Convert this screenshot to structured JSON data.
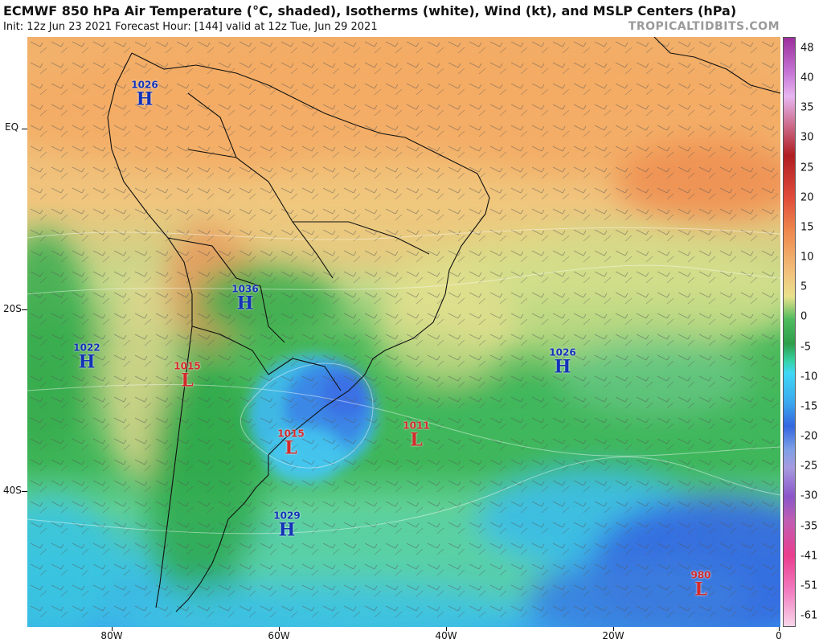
{
  "header": {
    "title": "ECMWF 850 hPa Air Temperature (°C, shaded), Isotherms (white), Wind (kt), and MSLP Centers (hPa)",
    "init": "Init: 12z Jun 23 2021   Forecast Hour: [144]   valid at 12z Tue, Jun 29 2021",
    "brand": "TROPICALTIDBITS.COM"
  },
  "axes": {
    "lat_labels": [
      "EQ",
      "20S",
      "40S"
    ],
    "lon_labels": [
      "80W",
      "60W",
      "40W",
      "20W",
      "0"
    ]
  },
  "colorbar": {
    "labels": [
      "48",
      "40",
      "35",
      "30",
      "25",
      "20",
      "15",
      "10",
      "5",
      "0",
      "-5",
      "-10",
      "-15",
      "-20",
      "-25",
      "-30",
      "-35",
      "-41",
      "-51",
      "-61"
    ]
  },
  "centers": [
    {
      "type": "H",
      "value": "1026"
    },
    {
      "type": "H",
      "value": "1036"
    },
    {
      "type": "H",
      "value": "1022"
    },
    {
      "type": "L",
      "value": "1015"
    },
    {
      "type": "L",
      "value": "1015"
    },
    {
      "type": "L",
      "value": "1011"
    },
    {
      "type": "H",
      "value": "1026"
    },
    {
      "type": "H",
      "value": "1029"
    },
    {
      "type": "L",
      "value": "980"
    }
  ],
  "colors": {
    "high": "#1232b8",
    "low": "#d42a2a",
    "brand": "#9a9a9a"
  }
}
